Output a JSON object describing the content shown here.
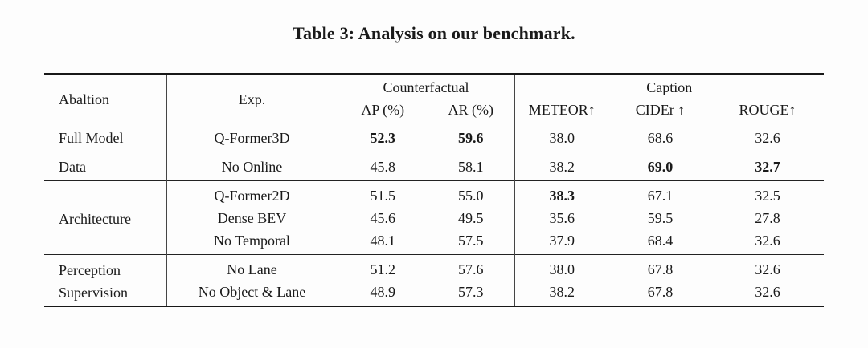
{
  "title": "Table 3: Analysis on our benchmark.",
  "table": {
    "headers": {
      "ablation": "Abaltion",
      "exp": "Exp.",
      "counterfactual_group": "Counterfactual",
      "caption_group": "Caption",
      "ap": "AP (%)",
      "ar": "AR (%)",
      "meteor": "METEOR↑",
      "cider": "CIDEr ↑",
      "rouge": "ROUGE↑"
    },
    "groups": [
      {
        "ablation": "Full Model",
        "rows": [
          {
            "exp": "Q-Former3D",
            "ap": "52.3",
            "ar": "59.6",
            "meteor": "38.0",
            "cider": "68.6",
            "rouge": "32.6",
            "bold": [
              "ap",
              "ar"
            ]
          }
        ]
      },
      {
        "ablation": "Data",
        "rows": [
          {
            "exp": "No Online",
            "ap": "45.8",
            "ar": "58.1",
            "meteor": "38.2",
            "cider": "69.0",
            "rouge": "32.7",
            "bold": [
              "cider",
              "rouge"
            ]
          }
        ]
      },
      {
        "ablation": "Architecture",
        "rows": [
          {
            "exp": "Q-Former2D",
            "ap": "51.5",
            "ar": "55.0",
            "meteor": "38.3",
            "cider": "67.1",
            "rouge": "32.5",
            "bold": [
              "meteor"
            ]
          },
          {
            "exp": "Dense BEV",
            "ap": "45.6",
            "ar": "49.5",
            "meteor": "35.6",
            "cider": "59.5",
            "rouge": "27.8",
            "bold": []
          },
          {
            "exp": "No Temporal",
            "ap": "48.1",
            "ar": "57.5",
            "meteor": "37.9",
            "cider": "68.4",
            "rouge": "32.6",
            "bold": []
          }
        ]
      },
      {
        "ablation": "Perception Supervision",
        "rows": [
          {
            "exp": "No Lane",
            "ap": "51.2",
            "ar": "57.6",
            "meteor": "38.0",
            "cider": "67.8",
            "rouge": "32.6",
            "bold": []
          },
          {
            "exp": "No Object & Lane",
            "ap": "48.9",
            "ar": "57.3",
            "meteor": "38.2",
            "cider": "67.8",
            "rouge": "32.6",
            "bold": []
          }
        ]
      }
    ]
  }
}
